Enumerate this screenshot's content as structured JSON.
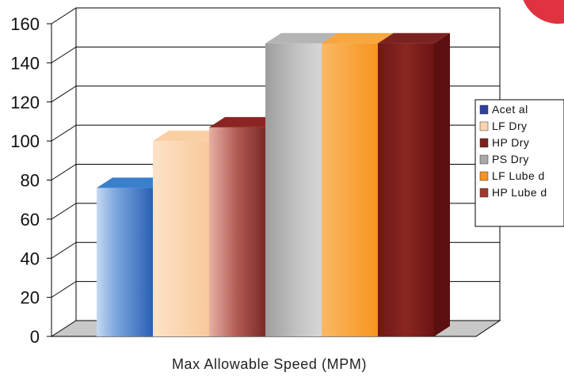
{
  "chart_data": {
    "type": "bar",
    "title": "",
    "xlabel": "Max Allowable Speed (MPM)",
    "ylabel": "",
    "ylim": [
      0,
      160
    ],
    "yticks": [
      0,
      20,
      40,
      60,
      80,
      100,
      120,
      140,
      160
    ],
    "categories": [
      "Max Allowable Speed (MPM)"
    ],
    "series": [
      {
        "name": "Acet al",
        "values": [
          76
        ],
        "color": "#0070C0"
      },
      {
        "name": "LF Dry",
        "values": [
          100
        ],
        "color": "#FBD5B0"
      },
      {
        "name": "HP Dry",
        "values": [
          107
        ],
        "color": "#7F1F1F"
      },
      {
        "name": "PS Dry",
        "values": [
          150
        ],
        "color": "#A8A8A8"
      },
      {
        "name": "LF Lube d",
        "values": [
          150
        ],
        "color": "#F7941D"
      },
      {
        "name": "HP Lube d",
        "values": [
          150
        ],
        "color": "#A0382E"
      }
    ],
    "legend_position": "right",
    "grid": true
  }
}
